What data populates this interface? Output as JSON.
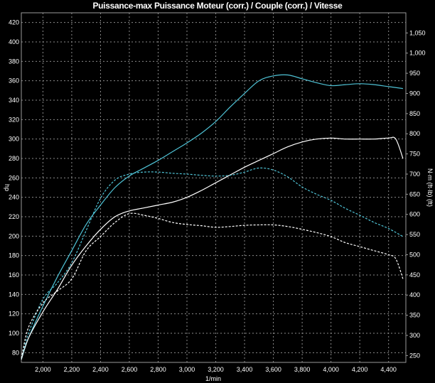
{
  "title": "Puissance-max Puissance Moteur (corr.) / Couple (corr.) / Vitesse",
  "chart_data": {
    "type": "line",
    "title": "Puissance-max Puissance Moteur (corr.) / Couple (corr.) / Vitesse",
    "xlabel": "1/min",
    "ylabel_left": "hp",
    "ylabel_right": "N·m (ft·lb) (ft)",
    "xlim": [
      1850,
      4520
    ],
    "ylim_left": [
      70,
      430
    ],
    "ylim_right": [
      233,
      1100
    ],
    "x_ticks": [
      "2,000",
      "2,200",
      "2,400",
      "2,600",
      "2,800",
      "3,000",
      "3,200",
      "3,400",
      "3,600",
      "3,800",
      "4,000",
      "4,200",
      "4,400"
    ],
    "y_left_ticks": [
      "80",
      "100",
      "120",
      "140",
      "160",
      "180",
      "200",
      "220",
      "240",
      "260",
      "280",
      "300",
      "320",
      "340",
      "360",
      "380",
      "400",
      "420"
    ],
    "y_right_ticks": [
      "250",
      "300",
      "350",
      "400",
      "450",
      "500",
      "550",
      "600",
      "650",
      "700",
      "750",
      "800",
      "850",
      "900",
      "950",
      "1,000",
      "1,050"
    ],
    "grid": true,
    "series": [
      {
        "color": "#4fc3d6",
        "style": "solid",
        "axis": "left",
        "x": [
          1850,
          1900,
          2000,
          2100,
          2200,
          2300,
          2400,
          2500,
          2600,
          2700,
          2800,
          2900,
          3000,
          3100,
          3200,
          3300,
          3400,
          3500,
          3600,
          3700,
          3800,
          3900,
          4000,
          4100,
          4200,
          4300,
          4400,
          4500
        ],
        "y": [
          73,
          95,
          128,
          158,
          185,
          212,
          232,
          250,
          262,
          270,
          278,
          287,
          296,
          306,
          318,
          333,
          347,
          360,
          365,
          366,
          362,
          358,
          355,
          356,
          357,
          356,
          354,
          352
        ]
      },
      {
        "color": "#ffffff",
        "style": "solid",
        "axis": "left",
        "x": [
          1850,
          1900,
          2000,
          2100,
          2200,
          2300,
          2400,
          2500,
          2600,
          2700,
          2800,
          2900,
          3000,
          3100,
          3200,
          3300,
          3400,
          3500,
          3600,
          3700,
          3800,
          3900,
          4000,
          4100,
          4200,
          4300,
          4400,
          4450,
          4500
        ],
        "y": [
          73,
          95,
          122,
          145,
          170,
          190,
          207,
          220,
          226,
          229,
          232,
          235,
          240,
          247,
          255,
          263,
          271,
          278,
          285,
          292,
          297,
          300,
          301,
          300,
          300,
          300,
          301,
          300,
          280
        ]
      },
      {
        "color": "#4fc3d6",
        "style": "dashed",
        "axis": "right",
        "x": [
          1850,
          1900,
          2000,
          2100,
          2200,
          2300,
          2400,
          2500,
          2600,
          2700,
          2800,
          2900,
          3000,
          3100,
          3200,
          3300,
          3400,
          3500,
          3600,
          3700,
          3800,
          3900,
          4000,
          4100,
          4200,
          4300,
          4400,
          4500
        ],
        "y": [
          243,
          305,
          390,
          430,
          480,
          560,
          640,
          685,
          700,
          705,
          705,
          702,
          700,
          697,
          695,
          697,
          705,
          715,
          710,
          693,
          668,
          650,
          635,
          615,
          598,
          580,
          565,
          545
        ]
      },
      {
        "color": "#ffffff",
        "style": "dashed",
        "axis": "right",
        "x": [
          1850,
          1900,
          2000,
          2100,
          2200,
          2300,
          2400,
          2500,
          2600,
          2700,
          2800,
          2900,
          3000,
          3100,
          3200,
          3300,
          3400,
          3500,
          3600,
          3700,
          3800,
          3900,
          4000,
          4100,
          4200,
          4300,
          4400,
          4450,
          4500
        ],
        "y": [
          243,
          320,
          380,
          410,
          440,
          510,
          545,
          580,
          602,
          598,
          590,
          580,
          575,
          572,
          568,
          570,
          573,
          574,
          574,
          570,
          563,
          555,
          545,
          530,
          520,
          510,
          500,
          490,
          440
        ]
      }
    ]
  }
}
